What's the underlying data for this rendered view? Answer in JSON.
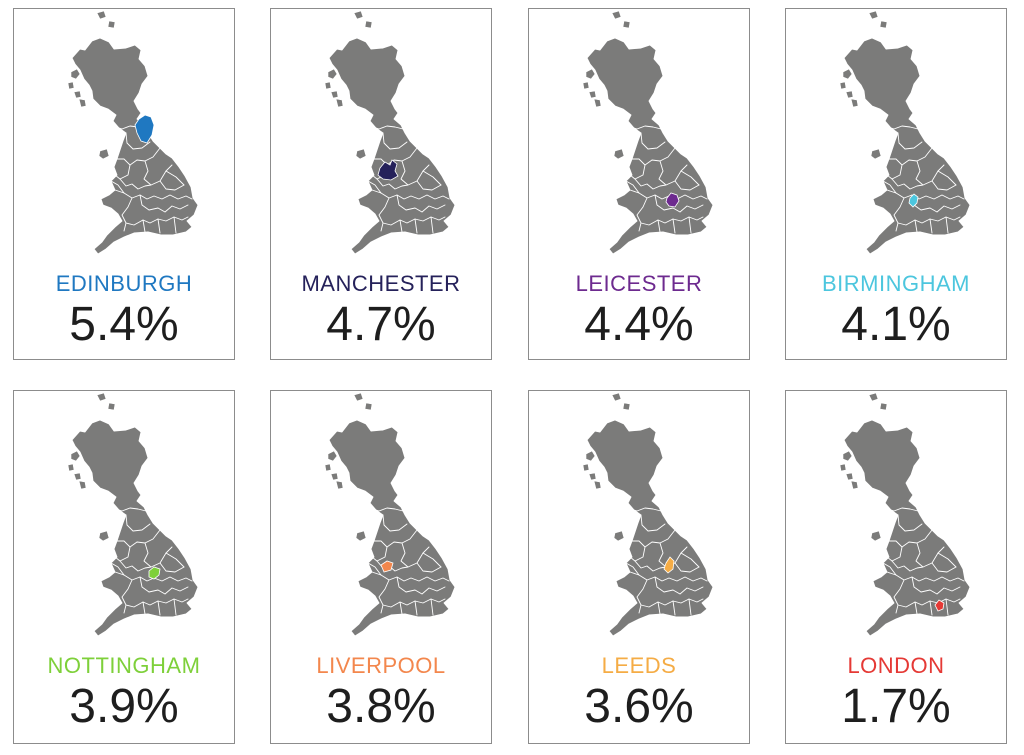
{
  "cards": [
    {
      "city": "EDINBURGH",
      "value": "5.4%",
      "color": "#1f78c1"
    },
    {
      "city": "MANCHESTER",
      "value": "4.7%",
      "color": "#25215a"
    },
    {
      "city": "LEICESTER",
      "value": "4.4%",
      "color": "#6d2a8f"
    },
    {
      "city": "BIRMINGHAM",
      "value": "4.1%",
      "color": "#4cc6de"
    },
    {
      "city": "NOTTINGHAM",
      "value": "3.9%",
      "color": "#7ed03a"
    },
    {
      "city": "LIVERPOOL",
      "value": "3.8%",
      "color": "#f3874d"
    },
    {
      "city": "LEEDS",
      "value": "3.6%",
      "color": "#f5ac45"
    },
    {
      "city": "LONDON",
      "value": "1.7%",
      "color": "#e53935"
    }
  ]
}
